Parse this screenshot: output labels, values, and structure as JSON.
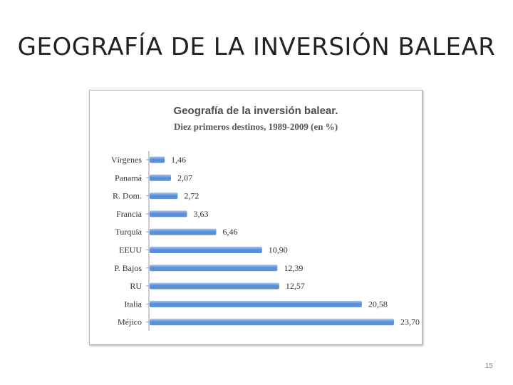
{
  "slide": {
    "title": "GEOGRAFÍA DE LA INVERSIÓN BALEAR",
    "page_number": "15"
  },
  "chart_data": {
    "type": "bar",
    "orientation": "horizontal",
    "title": "Geografía de la inversión balear.",
    "subtitle": "Diez primeros destinos, 1989-2009 (en %)",
    "categories": [
      "Vírgenes",
      "Panamá",
      "R. Dom.",
      "Francia",
      "Turquía",
      "EEUU",
      "P. Bajos",
      "RU",
      "Italia",
      "Méjico"
    ],
    "values": [
      1.46,
      2.07,
      2.72,
      3.63,
      6.46,
      10.9,
      12.39,
      12.57,
      20.58,
      23.7
    ],
    "value_labels": [
      "1,46",
      "2,07",
      "2,72",
      "3,63",
      "6,46",
      "10,90",
      "12,39",
      "12,57",
      "20,58",
      "23,70"
    ],
    "xlim": [
      0,
      23.7
    ],
    "grid": false,
    "legend": "none",
    "bar_color": "#5b8fd8",
    "bar_highlight_color": "#a9c7f0"
  }
}
